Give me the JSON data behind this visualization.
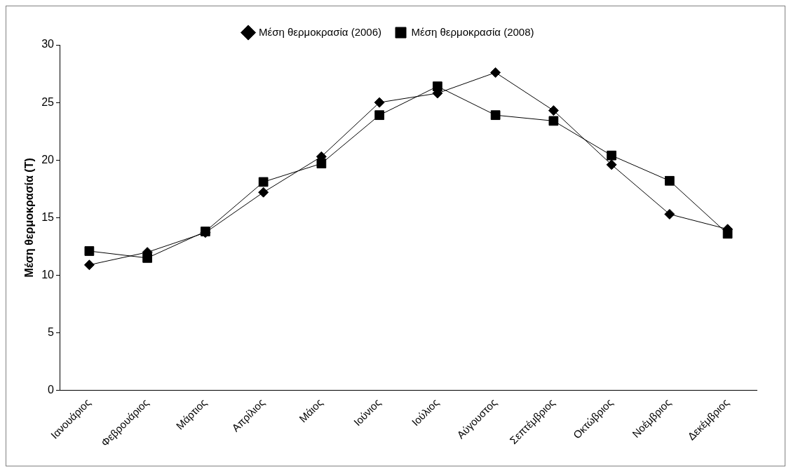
{
  "chart_data": {
    "type": "line",
    "ylabel": "Μέση θερμοκρασία (Τ)",
    "categories": [
      "Ιανουάριος",
      "Φεβρουάριος",
      "Μάρτιος",
      "Απρίλιος",
      "Μάιος",
      "Ιούνιος",
      "Ιούλιος",
      "Αύγουστος",
      "Σεπτέμβριος",
      "Οκτώβριος",
      "Νοέμβριος",
      "Δεκέμβριος"
    ],
    "series": [
      {
        "name": "Μέση θερμοκρασία (2006)",
        "color": "#000000",
        "marker": "diamond",
        "values": [
          10.9,
          12.0,
          13.7,
          17.2,
          20.3,
          25.0,
          25.8,
          27.6,
          24.3,
          19.6,
          15.3,
          14.0
        ]
      },
      {
        "name": "Μέση θερμοκρασία (2008)",
        "color": "#000000",
        "marker": "square",
        "values": [
          12.1,
          11.5,
          13.8,
          18.1,
          19.7,
          23.9,
          26.4,
          23.9,
          23.4,
          20.4,
          18.2,
          13.6
        ]
      }
    ],
    "ylim": [
      0,
      30
    ],
    "yticks": [
      0,
      5,
      10,
      15,
      20,
      25,
      30
    ],
    "grid": false,
    "legend": "top",
    "line_style": "solid"
  }
}
